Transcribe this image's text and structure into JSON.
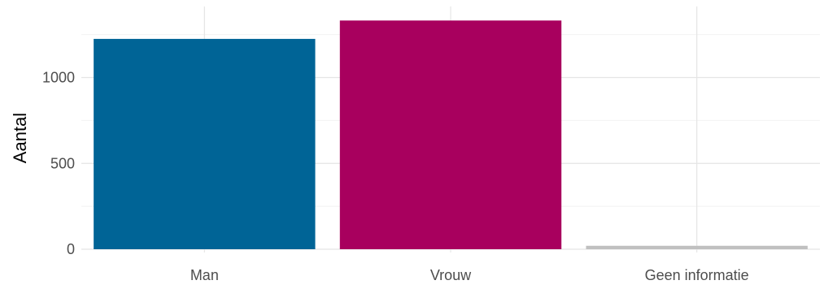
{
  "chart_data": {
    "type": "bar",
    "categories": [
      "Man",
      "Vrouw",
      "Geen informatie"
    ],
    "values": [
      1225,
      1332,
      20
    ],
    "colors": [
      "#006496",
      "#A8005E",
      "#C0C0C0"
    ],
    "xlabel": "",
    "ylabel": "Aantal",
    "ylim": [
      0,
      1400
    ],
    "yticks": [
      0,
      500,
      1000
    ],
    "ytick_labels": [
      "0",
      "500",
      "1000"
    ],
    "grid": true,
    "theme": "minimal"
  }
}
